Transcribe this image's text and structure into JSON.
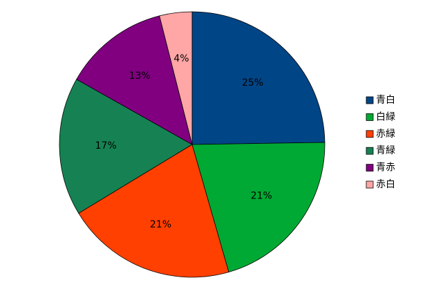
{
  "chart_data": {
    "type": "pie",
    "categories": [
      "青白",
      "白緑",
      "赤緑",
      "青緑",
      "青赤",
      "赤白"
    ],
    "values": [
      25,
      21,
      21,
      17,
      13,
      4
    ],
    "value_labels": [
      "25%",
      "21%",
      "21%",
      "17%",
      "13%",
      "4%"
    ],
    "colors": [
      "#004586",
      "#00a933",
      "#ff4000",
      "#168253",
      "#800080",
      "#ffa6a6"
    ],
    "legend": "right"
  }
}
